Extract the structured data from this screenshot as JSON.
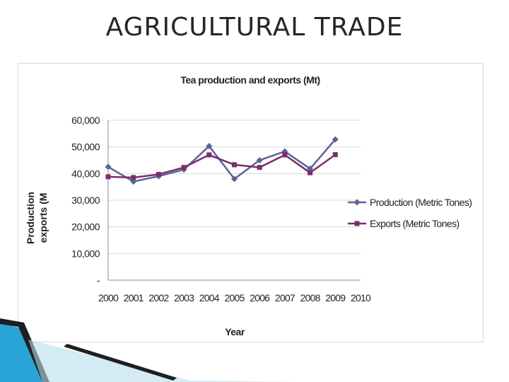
{
  "slide": {
    "title": "AGRICULTURAL TRADE",
    "accent_color": "#2aa3d8"
  },
  "chart_data": {
    "type": "line",
    "title": "Tea production and exports (Mt)",
    "xlabel": "Year",
    "ylabel": "Production exports (M",
    "ylabel_lines": [
      "Production",
      "exports (M"
    ],
    "categories": [
      "2000",
      "2001",
      "2002",
      "2003",
      "2004",
      "2005",
      "2006",
      "2007",
      "2008",
      "2009",
      "2010"
    ],
    "x": [
      2000,
      2001,
      2002,
      2003,
      2004,
      2005,
      2006,
      2007,
      2008,
      2009
    ],
    "y_ticks": [
      "-",
      "10,000",
      "20,000",
      "30,000",
      "40,000",
      "50,000",
      "60,000"
    ],
    "ylim": [
      0,
      60000
    ],
    "grid": true,
    "legend_position": "right",
    "series": [
      {
        "name": "Production (Metric Tones)",
        "color": "#5b6494",
        "marker": "diamond",
        "values": [
          42500,
          37000,
          39000,
          41500,
          50300,
          38000,
          45000,
          48300,
          41800,
          52800
        ]
      },
      {
        "name": "Exports (Metric Tones)",
        "color": "#7b2d6e",
        "marker": "square",
        "values": [
          38800,
          38500,
          39700,
          42300,
          47000,
          43300,
          42300,
          47000,
          40300,
          47100
        ]
      }
    ]
  }
}
